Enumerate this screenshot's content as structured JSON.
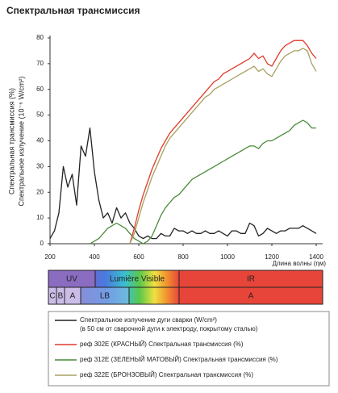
{
  "chart_data": {
    "type": "line",
    "title": "Спектральная трансмиссия",
    "y_label": [
      "Спектральная трансмиссия (%)",
      "Спектральное излучение (10⁻⁶ W/cm²)"
    ],
    "x_label": "Длина волны (ηм)",
    "xlim": [
      200,
      1400
    ],
    "ylim": [
      0,
      80
    ],
    "xticks": [
      200,
      400,
      600,
      800,
      1000,
      1200,
      1400
    ],
    "yticks": [
      0,
      10,
      20,
      30,
      40,
      50,
      60,
      70,
      80
    ],
    "grid": false,
    "x": [
      200,
      220,
      240,
      260,
      280,
      300,
      320,
      340,
      360,
      380,
      400,
      420,
      440,
      460,
      480,
      500,
      520,
      540,
      560,
      580,
      600,
      620,
      640,
      660,
      680,
      700,
      720,
      740,
      760,
      780,
      800,
      820,
      840,
      860,
      880,
      900,
      920,
      940,
      960,
      980,
      1000,
      1020,
      1040,
      1060,
      1080,
      1100,
      1120,
      1140,
      1160,
      1180,
      1200,
      1220,
      1240,
      1260,
      1280,
      1300,
      1320,
      1340,
      1360,
      1380,
      1400
    ],
    "series": [
      {
        "name": "Спектральное излучение дуги сварки (W/cm²)",
        "note": "(в 50 см от сварочной дуги к электроду, покрытому сталью)",
        "color": "#222222",
        "values": [
          2,
          5,
          12,
          30,
          22,
          27,
          15,
          38,
          34,
          45,
          28,
          17,
          10,
          12,
          8,
          14,
          10,
          12,
          8,
          6,
          3,
          2,
          3,
          2,
          2,
          4,
          3,
          3,
          6,
          5,
          5,
          4,
          5,
          4,
          4,
          5,
          4,
          4,
          5,
          4,
          3,
          5,
          5,
          4,
          4,
          8,
          7,
          3,
          4,
          6,
          5,
          4,
          5,
          5,
          6,
          6,
          6,
          7,
          6,
          5,
          4
        ]
      },
      {
        "name": "реф 302E (КРАСНЫЙ) Спектральная трансмиссия (%)",
        "color": "#e03a2a",
        "values": [
          null,
          null,
          null,
          null,
          null,
          null,
          null,
          null,
          null,
          null,
          null,
          null,
          null,
          null,
          null,
          null,
          null,
          null,
          0,
          6,
          13,
          19,
          24,
          29,
          33,
          37,
          40,
          43,
          45,
          47,
          49,
          51,
          53,
          55,
          57,
          59,
          61,
          63,
          64,
          66,
          67,
          68,
          69,
          70,
          71,
          72,
          74,
          72,
          73,
          70,
          69,
          72,
          75,
          77,
          78,
          79,
          79,
          79,
          77,
          74,
          72
        ]
      },
      {
        "name": "реф 312E (ЗЕЛЕНЫЙ МАТОВЫЙ) Спектральная трансмиссия (%)",
        "color": "#4a8a3a",
        "values": [
          null,
          null,
          null,
          null,
          null,
          null,
          null,
          null,
          null,
          0,
          1,
          2,
          4,
          6,
          7,
          8,
          7,
          6,
          4,
          2,
          1,
          0,
          1,
          3,
          7,
          11,
          14,
          16,
          18,
          19,
          21,
          23,
          25,
          26,
          27,
          28,
          29,
          30,
          31,
          32,
          33,
          34,
          35,
          36,
          37,
          38,
          38,
          37,
          39,
          40,
          40,
          41,
          42,
          43,
          44,
          46,
          47,
          48,
          47,
          45,
          45
        ]
      },
      {
        "name": "реф 322E (БРОНЗОВЫЙ) Спектральная трансмиссия (%)",
        "color": "#a8a060",
        "values": [
          null,
          null,
          null,
          null,
          null,
          null,
          null,
          null,
          null,
          null,
          null,
          null,
          null,
          null,
          null,
          null,
          null,
          null,
          0,
          4,
          10,
          16,
          21,
          26,
          30,
          34,
          38,
          41,
          43,
          45,
          47,
          49,
          51,
          53,
          55,
          57,
          58,
          60,
          61,
          62,
          63,
          64,
          65,
          66,
          67,
          68,
          69,
          67,
          68,
          66,
          65,
          68,
          71,
          73,
          74,
          75,
          75,
          76,
          75,
          70,
          67
        ]
      }
    ]
  },
  "spectrum": {
    "top": [
      "UV",
      "Lumière  Visible",
      "IR"
    ],
    "bottom": [
      "C",
      "B",
      "A",
      "LB",
      "A"
    ]
  }
}
